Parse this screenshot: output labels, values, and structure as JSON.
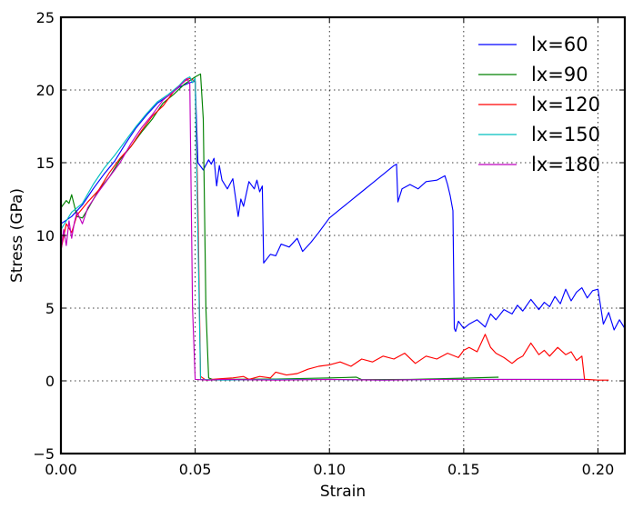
{
  "chart_data": {
    "type": "line",
    "title": "",
    "xlabel": "Strain",
    "ylabel": "Stress (GPa)",
    "xlim": [
      0.0,
      0.21
    ],
    "ylim": [
      -5,
      25
    ],
    "xticks": [
      0.0,
      0.05,
      0.1,
      0.15,
      0.2
    ],
    "xtick_labels": [
      "0.00",
      "0.05",
      "0.10",
      "0.15",
      "0.20"
    ],
    "yticks": [
      -5,
      0,
      5,
      10,
      15,
      20,
      25
    ],
    "ytick_labels": [
      "−5",
      "0",
      "5",
      "10",
      "15",
      "20",
      "25"
    ],
    "grid": true,
    "legend_position": "top-right",
    "series": [
      {
        "name": "lx=60",
        "color": "#0000ff",
        "x": [
          0.0,
          0.004,
          0.008,
          0.012,
          0.016,
          0.02,
          0.024,
          0.028,
          0.032,
          0.036,
          0.04,
          0.044,
          0.048,
          0.05,
          0.051,
          0.053,
          0.055,
          0.056,
          0.057,
          0.058,
          0.059,
          0.06,
          0.062,
          0.064,
          0.066,
          0.067,
          0.068,
          0.07,
          0.072,
          0.073,
          0.074,
          0.075,
          0.0755,
          0.078,
          0.08,
          0.082,
          0.085,
          0.088,
          0.09,
          0.093,
          0.096,
          0.1,
          0.104,
          0.108,
          0.112,
          0.116,
          0.12,
          0.124,
          0.125,
          0.1255,
          0.127,
          0.13,
          0.133,
          0.136,
          0.14,
          0.143,
          0.144,
          0.145,
          0.146,
          0.1465,
          0.147,
          0.148,
          0.15,
          0.152,
          0.155,
          0.158,
          0.16,
          0.162,
          0.165,
          0.168,
          0.17,
          0.172,
          0.175,
          0.178,
          0.18,
          0.182,
          0.184,
          0.186,
          0.188,
          0.19,
          0.192,
          0.194,
          0.196,
          0.198,
          0.2,
          0.202,
          0.204,
          0.206,
          0.208,
          0.21
        ],
        "y": [
          10.8,
          11.3,
          12.1,
          13.2,
          14.2,
          15.1,
          16.3,
          17.4,
          18.3,
          19.1,
          19.6,
          20.2,
          20.5,
          20.6,
          15.0,
          14.5,
          15.2,
          14.9,
          15.3,
          13.4,
          14.8,
          13.8,
          13.2,
          13.9,
          11.3,
          12.5,
          12.0,
          13.7,
          13.2,
          13.8,
          13.0,
          13.4,
          8.1,
          8.7,
          8.6,
          9.4,
          9.2,
          9.8,
          8.9,
          9.5,
          10.2,
          11.2,
          11.8,
          12.4,
          13.0,
          13.6,
          14.2,
          14.8,
          14.9,
          12.3,
          13.2,
          13.5,
          13.2,
          13.7,
          13.8,
          14.1,
          13.5,
          12.7,
          11.7,
          3.6,
          3.4,
          4.1,
          3.6,
          3.9,
          4.2,
          3.7,
          4.6,
          4.2,
          4.9,
          4.6,
          5.2,
          4.8,
          5.6,
          4.9,
          5.4,
          5.1,
          5.8,
          5.3,
          6.3,
          5.5,
          6.1,
          6.4,
          5.7,
          6.2,
          6.3,
          3.9,
          4.7,
          3.5,
          4.2,
          3.6
        ]
      },
      {
        "name": "lx=90",
        "color": "#008000",
        "x": [
          0.0,
          0.002,
          0.003,
          0.004,
          0.006,
          0.008,
          0.01,
          0.014,
          0.018,
          0.022,
          0.026,
          0.03,
          0.034,
          0.038,
          0.042,
          0.046,
          0.05,
          0.052,
          0.053,
          0.054,
          0.055,
          0.057,
          0.06,
          0.08,
          0.1,
          0.11,
          0.112,
          0.13,
          0.15,
          0.163
        ],
        "y": [
          11.9,
          12.4,
          12.2,
          12.8,
          11.3,
          11.2,
          11.8,
          13.1,
          14.0,
          15.2,
          16.1,
          17.1,
          18.0,
          19.1,
          19.7,
          20.4,
          20.9,
          21.1,
          18.0,
          5.0,
          0.2,
          0.05,
          0.1,
          0.12,
          0.2,
          0.25,
          0.08,
          0.1,
          0.18,
          0.25
        ]
      },
      {
        "name": "lx=120",
        "color": "#ff0000",
        "x": [
          0.0,
          0.002,
          0.004,
          0.006,
          0.01,
          0.014,
          0.018,
          0.022,
          0.026,
          0.03,
          0.034,
          0.038,
          0.042,
          0.046,
          0.048,
          0.05,
          0.051,
          0.052,
          0.054,
          0.056,
          0.06,
          0.064,
          0.068,
          0.07,
          0.074,
          0.078,
          0.08,
          0.084,
          0.088,
          0.092,
          0.096,
          0.1,
          0.104,
          0.108,
          0.112,
          0.116,
          0.12,
          0.124,
          0.128,
          0.132,
          0.136,
          0.14,
          0.144,
          0.148,
          0.15,
          0.152,
          0.155,
          0.158,
          0.16,
          0.162,
          0.165,
          0.168,
          0.17,
          0.172,
          0.175,
          0.178,
          0.18,
          0.182,
          0.185,
          0.188,
          0.19,
          0.192,
          0.194,
          0.195,
          0.196,
          0.2,
          0.204
        ],
        "y": [
          9.0,
          10.8,
          10.2,
          11.4,
          12.3,
          13.1,
          14.3,
          15.3,
          16.1,
          17.2,
          18.2,
          18.9,
          19.9,
          20.6,
          20.8,
          20.6,
          12.0,
          0.3,
          0.05,
          0.1,
          0.15,
          0.2,
          0.3,
          0.1,
          0.3,
          0.2,
          0.6,
          0.4,
          0.5,
          0.8,
          1.0,
          1.1,
          1.3,
          1.0,
          1.5,
          1.3,
          1.7,
          1.5,
          1.9,
          1.2,
          1.7,
          1.5,
          1.9,
          1.6,
          2.1,
          2.3,
          2.0,
          3.2,
          2.3,
          1.9,
          1.6,
          1.2,
          1.5,
          1.7,
          2.6,
          1.8,
          2.1,
          1.7,
          2.3,
          1.8,
          2.0,
          1.4,
          1.7,
          0.1,
          0.1,
          0.05,
          0.05
        ]
      },
      {
        "name": "lx=150",
        "color": "#00bfbf",
        "x": [
          0.0,
          0.004,
          0.008,
          0.012,
          0.016,
          0.02,
          0.024,
          0.028,
          0.032,
          0.036,
          0.04,
          0.044,
          0.046,
          0.048,
          0.049,
          0.05,
          0.051,
          0.052,
          0.06,
          0.08,
          0.1,
          0.12,
          0.14,
          0.16,
          0.18,
          0.195
        ],
        "y": [
          10.4,
          11.6,
          12.2,
          13.5,
          14.6,
          15.5,
          16.5,
          17.5,
          18.4,
          19.2,
          19.7,
          20.3,
          20.7,
          20.9,
          20.5,
          20.8,
          10.0,
          0.1,
          0.05,
          0.1,
          0.1,
          0.05,
          0.1,
          0.1,
          0.1,
          0.1
        ]
      },
      {
        "name": "lx=180",
        "color": "#bf00bf",
        "x": [
          0.0,
          0.001,
          0.002,
          0.003,
          0.004,
          0.005,
          0.006,
          0.008,
          0.01,
          0.014,
          0.018,
          0.022,
          0.026,
          0.03,
          0.034,
          0.038,
          0.042,
          0.046,
          0.047,
          0.048,
          0.049,
          0.05,
          0.055,
          0.06,
          0.08,
          0.1,
          0.12,
          0.14,
          0.16,
          0.18,
          0.195
        ],
        "y": [
          8.9,
          10.4,
          9.3,
          11.0,
          9.8,
          10.9,
          11.6,
          10.8,
          11.9,
          13.0,
          14.0,
          15.0,
          16.3,
          17.4,
          18.3,
          19.3,
          19.9,
          20.6,
          20.8,
          20.4,
          5.0,
          0.1,
          0.05,
          0.1,
          0.05,
          0.1,
          0.05,
          0.1,
          0.1,
          0.1,
          0.1
        ]
      }
    ]
  }
}
